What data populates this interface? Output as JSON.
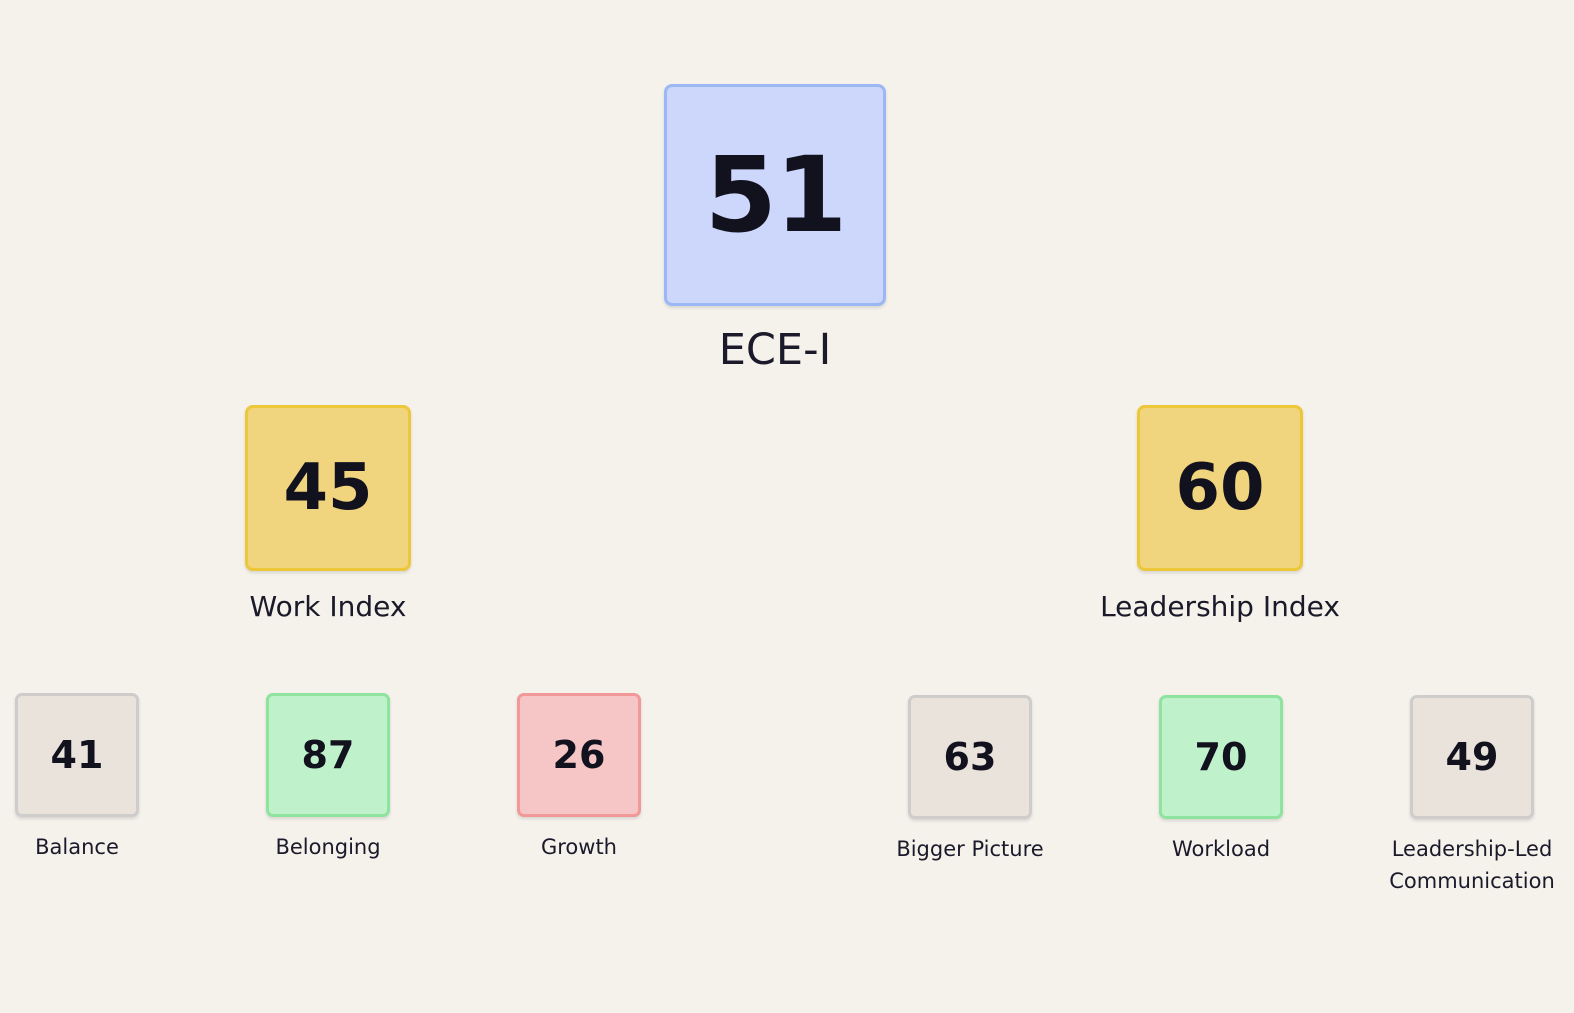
{
  "root": {
    "value": "51",
    "label": "ECE-I",
    "color": "#cdd6fb"
  },
  "work_index": {
    "value": "45",
    "label": "Work Index",
    "color": "#f0d47e"
  },
  "leadership_index": {
    "value": "60",
    "label": "Leadership Index",
    "color": "#f0d47e"
  },
  "work_children": [
    {
      "value": "41",
      "label": "Balance",
      "status": "neutral"
    },
    {
      "value": "87",
      "label": "Belonging",
      "status": "good"
    },
    {
      "value": "26",
      "label": "Growth",
      "status": "bad"
    }
  ],
  "leadership_children": [
    {
      "value": "63",
      "label": "Bigger Picture",
      "status": "neutral"
    },
    {
      "value": "70",
      "label": "Workload",
      "status": "good"
    },
    {
      "value": "49",
      "label": "Leadership-Led Communication",
      "status": "neutral"
    }
  ],
  "status_colors": {
    "neutral": "#e9e3dc",
    "good": "#bff2cb",
    "bad": "#f6c6c6"
  }
}
